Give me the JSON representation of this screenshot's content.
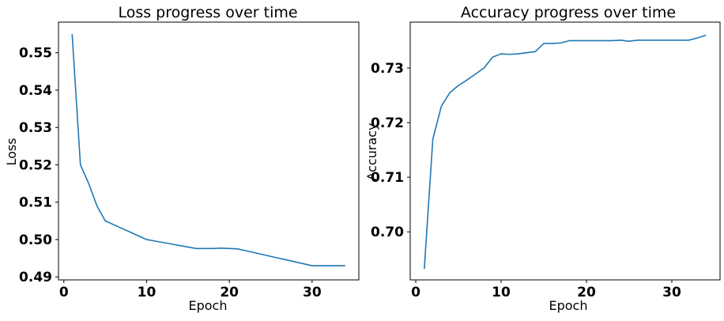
{
  "chart_data": [
    {
      "type": "line",
      "title": "Loss progress over time",
      "xlabel": "Epoch",
      "ylabel": "Loss",
      "xlim": [
        -0.65,
        35.65
      ],
      "ylim": [
        0.4892,
        0.5582
      ],
      "xticks": [
        0,
        10,
        20,
        30
      ],
      "yticks": [
        0.49,
        0.5,
        0.51,
        0.52,
        0.53,
        0.54,
        0.55
      ],
      "ytick_labels": [
        "0.49",
        "0.50",
        "0.51",
        "0.52",
        "0.53",
        "0.54",
        "0.55"
      ],
      "grid": false,
      "series": [
        {
          "color": "#1f77b4",
          "x": [
            1,
            2,
            3,
            4,
            5,
            6,
            7,
            8,
            9,
            10,
            11,
            12,
            13,
            14,
            15,
            16,
            17,
            18,
            19,
            20,
            21,
            22,
            23,
            24,
            25,
            26,
            27,
            28,
            29,
            30,
            31,
            32,
            33,
            34
          ],
          "y": [
            0.555,
            0.52,
            0.515,
            0.509,
            0.505,
            0.504,
            0.503,
            0.502,
            0.501,
            0.5,
            0.4996,
            0.4992,
            0.4988,
            0.4984,
            0.498,
            0.4976,
            0.4976,
            0.4976,
            0.4977,
            0.4976,
            0.4975,
            0.497,
            0.4965,
            0.496,
            0.4955,
            0.495,
            0.4945,
            0.494,
            0.4935,
            0.493,
            0.493,
            0.493,
            0.493,
            0.493
          ]
        }
      ]
    },
    {
      "type": "line",
      "title": "Accuracy progress over time",
      "xlabel": "Epoch",
      "ylabel": "Accuracy",
      "xlim": [
        -0.65,
        35.65
      ],
      "ylim": [
        0.6912,
        0.7384
      ],
      "xticks": [
        0,
        10,
        20,
        30
      ],
      "yticks": [
        0.7,
        0.71,
        0.72,
        0.73
      ],
      "ytick_labels": [
        "0.70",
        "0.71",
        "0.72",
        "0.73"
      ],
      "grid": false,
      "series": [
        {
          "color": "#1f77b4",
          "x": [
            1,
            2,
            3,
            4,
            5,
            6,
            7,
            8,
            9,
            10,
            11,
            12,
            13,
            14,
            15,
            16,
            17,
            18,
            19,
            20,
            21,
            22,
            23,
            24,
            25,
            26,
            27,
            28,
            29,
            30,
            31,
            32,
            33,
            34
          ],
          "y": [
            0.6932,
            0.717,
            0.723,
            0.7255,
            0.7268,
            0.7278,
            0.7289,
            0.73,
            0.732,
            0.7326,
            0.7325,
            0.7326,
            0.7328,
            0.733,
            0.7345,
            0.7345,
            0.7346,
            0.735,
            0.735,
            0.735,
            0.735,
            0.735,
            0.735,
            0.7351,
            0.7349,
            0.7351,
            0.7351,
            0.7351,
            0.7351,
            0.7351,
            0.7351,
            0.7351,
            0.7355,
            0.736
          ]
        }
      ]
    }
  ]
}
